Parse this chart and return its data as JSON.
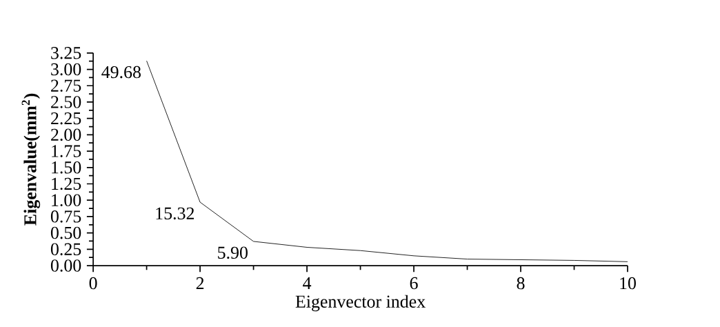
{
  "chart_data": {
    "type": "line",
    "xlabel": "Eigenvector index",
    "ylabel": "Eigenvalue(mm$^{2}$)",
    "x": [
      1,
      2,
      3,
      4,
      5,
      6,
      7,
      8,
      9,
      10
    ],
    "values": [
      3.13,
      0.97,
      0.37,
      0.28,
      0.23,
      0.15,
      0.1,
      0.09,
      0.08,
      0.06
    ],
    "color": "#000000",
    "xlim": [
      0,
      10
    ],
    "xticks": [
      0,
      2,
      4,
      6,
      8,
      10
    ],
    "ylim": [
      0,
      3.25
    ],
    "yticks": [
      {
        "value": 0,
        "label": "0.00"
      },
      {
        "value": 0.25,
        "label": "0.25"
      },
      {
        "value": 0.5,
        "label": "0.50"
      },
      {
        "value": 0.75,
        "label": "0.75"
      },
      {
        "value": 1,
        "label": "1.00"
      },
      {
        "value": 1.25,
        "label": "1.25"
      },
      {
        "value": 1.5,
        "label": "1.50"
      },
      {
        "value": 1.75,
        "label": "1.75"
      },
      {
        "value": 2,
        "label": "2.00"
      },
      {
        "value": 2.25,
        "label": "2.25"
      },
      {
        "value": 2.5,
        "label": "2.50"
      },
      {
        "value": 2.75,
        "label": "2.75"
      },
      {
        "value": 3,
        "label": "3.00"
      },
      {
        "value": 3.25,
        "label": "3.25"
      }
    ],
    "annotations": [
      {
        "text": "49.68",
        "x": 1,
        "y": 3.13
      },
      {
        "text": "15.32",
        "x": 2,
        "y": 0.97
      },
      {
        "text": "5.90",
        "x": 3,
        "y": 0.37
      }
    ],
    "grid": false,
    "marker": "none",
    "line_style": "solid"
  }
}
